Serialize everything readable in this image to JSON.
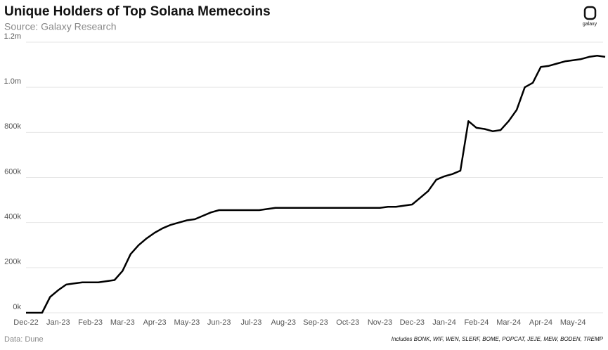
{
  "chart_data": {
    "type": "line",
    "title": "Unique Holders of Top Solana Memecoins",
    "subtitle": "Source: Galaxy Research",
    "source": "Data: Dune",
    "note": "Includes BONK, WIF, WEN, SLERF, BOME, POPCAT, JEJE, MEW, BODEN, TREMP",
    "logo": "galaxy",
    "categories": [
      "Dec-22",
      null,
      null,
      null,
      "Jan-23",
      null,
      null,
      null,
      "Feb-23",
      null,
      null,
      null,
      "Mar-23",
      null,
      null,
      null,
      "Apr-23",
      null,
      null,
      null,
      "May-23",
      null,
      null,
      null,
      "Jun-23",
      null,
      null,
      null,
      "Jul-23",
      null,
      null,
      null,
      "Aug-23",
      null,
      null,
      null,
      "Sep-23",
      null,
      null,
      null,
      "Oct-23",
      null,
      null,
      null,
      "Nov-23",
      null,
      null,
      null,
      "Dec-23",
      null,
      null,
      null,
      "Jan-24",
      null,
      null,
      null,
      "Feb-24",
      null,
      null,
      null,
      "Mar-24",
      null,
      null,
      null,
      "Apr-24",
      null,
      null,
      null,
      "May-24",
      null,
      null,
      null,
      null
    ],
    "series": [
      {
        "name": "Unique holders",
        "color": "#000000",
        "values": [
          0,
          0,
          0,
          70000,
          100000,
          125000,
          130000,
          135000,
          135000,
          135000,
          140000,
          145000,
          185000,
          260000,
          300000,
          330000,
          355000,
          375000,
          390000,
          400000,
          410000,
          415000,
          430000,
          445000,
          455000,
          455000,
          455000,
          455000,
          455000,
          455000,
          460000,
          465000,
          465000,
          465000,
          465000,
          465000,
          465000,
          465000,
          465000,
          465000,
          465000,
          465000,
          465000,
          465000,
          465000,
          470000,
          470000,
          475000,
          480000,
          510000,
          540000,
          590000,
          605000,
          615000,
          630000,
          850000,
          820000,
          815000,
          805000,
          810000,
          850000,
          900000,
          1000000,
          1020000,
          1090000,
          1095000,
          1105000,
          1115000,
          1120000,
          1125000,
          1135000,
          1140000,
          1135000
        ]
      }
    ],
    "ylim": [
      0,
      1200000
    ],
    "yticks": [
      {
        "value": 0,
        "label": "0k"
      },
      {
        "value": 200000,
        "label": "200k"
      },
      {
        "value": 400000,
        "label": "400k"
      },
      {
        "value": 600000,
        "label": "600k"
      },
      {
        "value": 800000,
        "label": "800k"
      },
      {
        "value": 1000000,
        "label": "1.0m"
      },
      {
        "value": 1200000,
        "label": "1.2m"
      }
    ],
    "grid": true
  }
}
